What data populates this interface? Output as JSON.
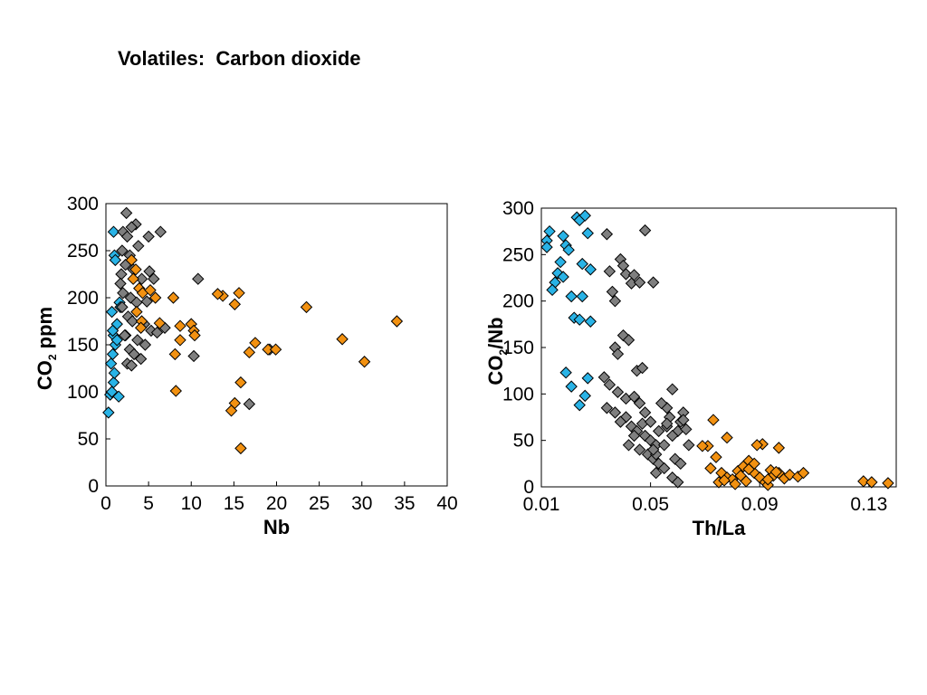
{
  "slide": {
    "title": "Volatiles:  Carbon dioxide"
  },
  "colors": {
    "blue": "#29b3e6",
    "gray": "#7f7f7f",
    "orange": "#f29111",
    "marker_stroke": "#000000"
  },
  "chart_data": [
    {
      "type": "scatter",
      "title": "",
      "xlabel": "Nb",
      "ylabel_main": "CO",
      "ylabel_sub": "2",
      "ylabel_rest": " ppm",
      "xlim": [
        0,
        40
      ],
      "ylim": [
        0,
        300
      ],
      "xticks": [
        0,
        5,
        10,
        15,
        20,
        25,
        30,
        35,
        40
      ],
      "yticks": [
        0,
        50,
        100,
        150,
        200,
        250,
        300
      ],
      "grid": false,
      "legend": "none",
      "series": [
        {
          "color": "#29b3e6",
          "points": [
            [
              0.3,
              78
            ],
            [
              0.5,
              97
            ],
            [
              0.7,
              100
            ],
            [
              0.9,
              110
            ],
            [
              1.0,
              120
            ],
            [
              0.6,
              130
            ],
            [
              0.8,
              140
            ],
            [
              1.1,
              150
            ],
            [
              0.9,
              160
            ],
            [
              1.3,
              172
            ],
            [
              0.7,
              185
            ],
            [
              1.6,
              195
            ],
            [
              1.0,
              245
            ],
            [
              0.9,
              270
            ],
            [
              1.3,
              155
            ],
            [
              1.5,
              95
            ],
            [
              1.1,
              240
            ],
            [
              1.7,
              190
            ],
            [
              0.8,
              165
            ]
          ]
        },
        {
          "color": "#7f7f7f",
          "points": [
            [
              2.4,
              290
            ],
            [
              3.5,
              278
            ],
            [
              3.0,
              275
            ],
            [
              2.0,
              270
            ],
            [
              2.5,
              265
            ],
            [
              5.0,
              265
            ],
            [
              6.4,
              270
            ],
            [
              3.8,
              255
            ],
            [
              1.9,
              250
            ],
            [
              2.8,
              245
            ],
            [
              2.3,
              235
            ],
            [
              3.2,
              230
            ],
            [
              5.1,
              228
            ],
            [
              1.8,
              225
            ],
            [
              4.2,
              220
            ],
            [
              5.6,
              220
            ],
            [
              2.0,
              205
            ],
            [
              2.9,
              200
            ],
            [
              3.6,
              195
            ],
            [
              4.8,
              196
            ],
            [
              1.9,
              190
            ],
            [
              2.6,
              180
            ],
            [
              3.1,
              175
            ],
            [
              4.5,
              172
            ],
            [
              5.3,
              165
            ],
            [
              6.9,
              168
            ],
            [
              2.3,
              160
            ],
            [
              3.7,
              155
            ],
            [
              4.6,
              150
            ],
            [
              2.8,
              145
            ],
            [
              3.3,
              140
            ],
            [
              4.1,
              135
            ],
            [
              2.5,
              130
            ],
            [
              3.0,
              128
            ],
            [
              10.8,
              220
            ],
            [
              10.3,
              138
            ],
            [
              16.8,
              87
            ],
            [
              19.2,
              145
            ],
            [
              1.7,
              215
            ],
            [
              2.2,
              160
            ],
            [
              6.0,
              163
            ]
          ]
        },
        {
          "color": "#f29111",
          "points": [
            [
              3.0,
              240
            ],
            [
              3.5,
              230
            ],
            [
              3.2,
              220
            ],
            [
              3.9,
              210
            ],
            [
              4.3,
              205
            ],
            [
              5.2,
              208
            ],
            [
              5.8,
              200
            ],
            [
              7.9,
              200
            ],
            [
              3.6,
              185
            ],
            [
              4.2,
              175
            ],
            [
              4.1,
              168
            ],
            [
              6.3,
              173
            ],
            [
              8.7,
              170
            ],
            [
              8.1,
              140
            ],
            [
              8.7,
              155
            ],
            [
              10.0,
              172
            ],
            [
              10.3,
              165
            ],
            [
              10.4,
              160
            ],
            [
              13.7,
              202
            ],
            [
              13.1,
              204
            ],
            [
              15.6,
              205
            ],
            [
              15.1,
              193
            ],
            [
              17.5,
              152
            ],
            [
              16.8,
              142
            ],
            [
              19.0,
              145
            ],
            [
              19.9,
              145
            ],
            [
              15.8,
              110
            ],
            [
              8.2,
              101
            ],
            [
              15.1,
              88
            ],
            [
              14.7,
              80
            ],
            [
              15.8,
              40
            ],
            [
              23.5,
              190
            ],
            [
              27.7,
              156
            ],
            [
              30.3,
              132
            ],
            [
              34.1,
              175
            ]
          ]
        }
      ]
    },
    {
      "type": "scatter",
      "title": "",
      "xlabel": "Th/La",
      "ylabel_main": "CO",
      "ylabel_sub": "2",
      "ylabel_rest": "/Nb",
      "xlim": [
        0.01,
        0.14
      ],
      "ylim": [
        0,
        300
      ],
      "xticks": [
        0.01,
        0.05,
        0.09,
        0.13
      ],
      "xtick_labels": [
        "0.01",
        "0.05",
        "0.09",
        "0.13"
      ],
      "yticks": [
        0,
        50,
        100,
        150,
        200,
        250,
        300
      ],
      "grid": false,
      "legend": "none",
      "series": [
        {
          "color": "#29b3e6",
          "points": [
            [
              0.013,
              275
            ],
            [
              0.012,
              265
            ],
            [
              0.012,
              258
            ],
            [
              0.018,
              270
            ],
            [
              0.019,
              260
            ],
            [
              0.02,
              255
            ],
            [
              0.017,
              242
            ],
            [
              0.023,
              290
            ],
            [
              0.024,
              287
            ],
            [
              0.026,
              292
            ],
            [
              0.027,
              273
            ],
            [
              0.025,
              240
            ],
            [
              0.028,
              234
            ],
            [
              0.016,
              230
            ],
            [
              0.018,
              226
            ],
            [
              0.015,
              220
            ],
            [
              0.014,
              212
            ],
            [
              0.021,
              205
            ],
            [
              0.025,
              205
            ],
            [
              0.022,
              182
            ],
            [
              0.024,
              180
            ],
            [
              0.028,
              178
            ],
            [
              0.019,
              123
            ],
            [
              0.027,
              117
            ],
            [
              0.021,
              108
            ],
            [
              0.026,
              98
            ],
            [
              0.024,
              88
            ]
          ]
        },
        {
          "color": "#7f7f7f",
          "points": [
            [
              0.034,
              272
            ],
            [
              0.048,
              276
            ],
            [
              0.039,
              245
            ],
            [
              0.035,
              232
            ],
            [
              0.041,
              229
            ],
            [
              0.044,
              228
            ],
            [
              0.04,
              238
            ],
            [
              0.043,
              219
            ],
            [
              0.046,
              220
            ],
            [
              0.051,
              220
            ],
            [
              0.036,
              210
            ],
            [
              0.037,
              200
            ],
            [
              0.04,
              163
            ],
            [
              0.042,
              158
            ],
            [
              0.037,
              150
            ],
            [
              0.038,
              143
            ],
            [
              0.045,
              125
            ],
            [
              0.047,
              128
            ],
            [
              0.033,
              118
            ],
            [
              0.035,
              110
            ],
            [
              0.038,
              102
            ],
            [
              0.041,
              95
            ],
            [
              0.044,
              97
            ],
            [
              0.046,
              90
            ],
            [
              0.034,
              85
            ],
            [
              0.037,
              80
            ],
            [
              0.041,
              75
            ],
            [
              0.039,
              70
            ],
            [
              0.043,
              65
            ],
            [
              0.045,
              60
            ],
            [
              0.048,
              55
            ],
            [
              0.05,
              50
            ],
            [
              0.052,
              45
            ],
            [
              0.046,
              40
            ],
            [
              0.049,
              35
            ],
            [
              0.051,
              30
            ],
            [
              0.053,
              25
            ],
            [
              0.055,
              20
            ],
            [
              0.057,
              75
            ],
            [
              0.056,
              85
            ],
            [
              0.058,
              105
            ],
            [
              0.061,
              70
            ],
            [
              0.062,
              80
            ],
            [
              0.06,
              60
            ],
            [
              0.058,
              55
            ],
            [
              0.055,
              45
            ],
            [
              0.052,
              35
            ],
            [
              0.059,
              30
            ],
            [
              0.061,
              25
            ],
            [
              0.053,
              60
            ],
            [
              0.047,
              68
            ],
            [
              0.042,
              45
            ],
            [
              0.05,
              70
            ],
            [
              0.054,
              90
            ],
            [
              0.056,
              65
            ],
            [
              0.063,
              62
            ],
            [
              0.064,
              45
            ],
            [
              0.058,
              10
            ],
            [
              0.052,
              15
            ],
            [
              0.06,
              5
            ],
            [
              0.048,
              80
            ],
            [
              0.044,
              55
            ],
            [
              0.051,
              40
            ],
            [
              0.056,
              68
            ],
            [
              0.062,
              72
            ]
          ]
        },
        {
          "color": "#f29111",
          "points": [
            [
              0.073,
              72
            ],
            [
              0.071,
              44
            ],
            [
              0.069,
              44
            ],
            [
              0.074,
              32
            ],
            [
              0.072,
              20
            ],
            [
              0.076,
              15
            ],
            [
              0.078,
              10
            ],
            [
              0.08,
              8
            ],
            [
              0.075,
              5
            ],
            [
              0.082,
              17
            ],
            [
              0.084,
              22
            ],
            [
              0.086,
              28
            ],
            [
              0.083,
              12
            ],
            [
              0.085,
              6
            ],
            [
              0.088,
              15
            ],
            [
              0.09,
              10
            ],
            [
              0.092,
              5
            ],
            [
              0.094,
              18
            ],
            [
              0.095,
              12
            ],
            [
              0.097,
              15
            ],
            [
              0.099,
              9
            ],
            [
              0.101,
              13
            ],
            [
              0.091,
              46
            ],
            [
              0.089,
              45
            ],
            [
              0.097,
              42
            ],
            [
              0.078,
              53
            ],
            [
              0.077,
              7
            ],
            [
              0.086,
              19
            ],
            [
              0.088,
              25
            ],
            [
              0.093,
              2
            ],
            [
              0.096,
              16
            ],
            [
              0.104,
              11
            ],
            [
              0.106,
              15
            ],
            [
              0.128,
              6
            ],
            [
              0.131,
              5
            ],
            [
              0.137,
              4
            ],
            [
              0.081,
              3
            ],
            [
              0.093,
              8
            ]
          ]
        }
      ]
    }
  ]
}
